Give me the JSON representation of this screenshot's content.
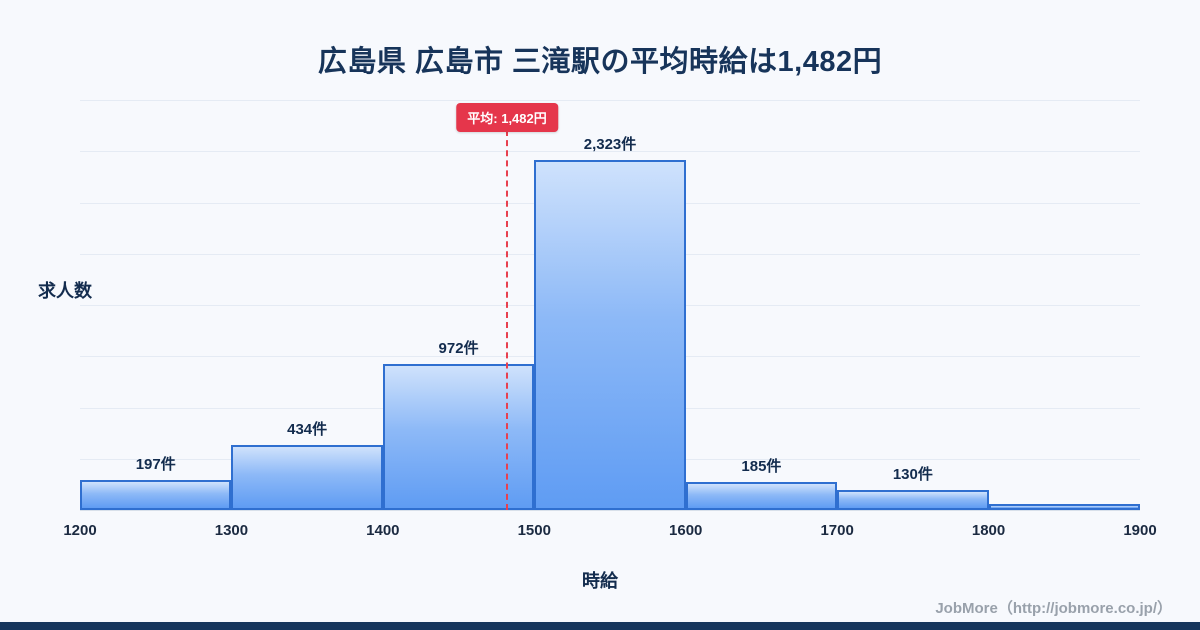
{
  "title": "広島県 広島市 三滝駅の平均時給は1,482円",
  "credit": "JobMore（http://jobmore.co.jp/）",
  "colors": {
    "background": "#f7f9fd",
    "bar_border": "#2f6fd0",
    "bar_fill_top": "#cfe2fc",
    "bar_fill_bottom": "#5f9cf3",
    "average_red": "#e5364b",
    "title_navy": "#17345a",
    "footer_strip": "#16365c"
  },
  "chart_data": {
    "type": "bar",
    "title": "広島県 広島市 三滝駅の平均時給は1,482円",
    "xlabel": "時給",
    "ylabel": "求人数",
    "categories": [
      "1200-1300",
      "1300-1400",
      "1400-1500",
      "1500-1600",
      "1600-1700",
      "1700-1800",
      "1800-1900"
    ],
    "values": [
      197,
      434,
      972,
      2323,
      185,
      130,
      40
    ],
    "bar_labels": [
      "197件",
      "434件",
      "972件",
      "2,323件",
      "185件",
      "130件",
      ""
    ],
    "x_ticks": [
      "1200",
      "1300",
      "1400",
      "1500",
      "1600",
      "1700",
      "1800",
      "1900"
    ],
    "xlim": [
      1200,
      1900
    ],
    "ylim": [
      0,
      2720
    ],
    "grid": true,
    "grid_divisions": 8,
    "legend": "none",
    "average": 1482,
    "average_label": "平均: 1,482円"
  }
}
